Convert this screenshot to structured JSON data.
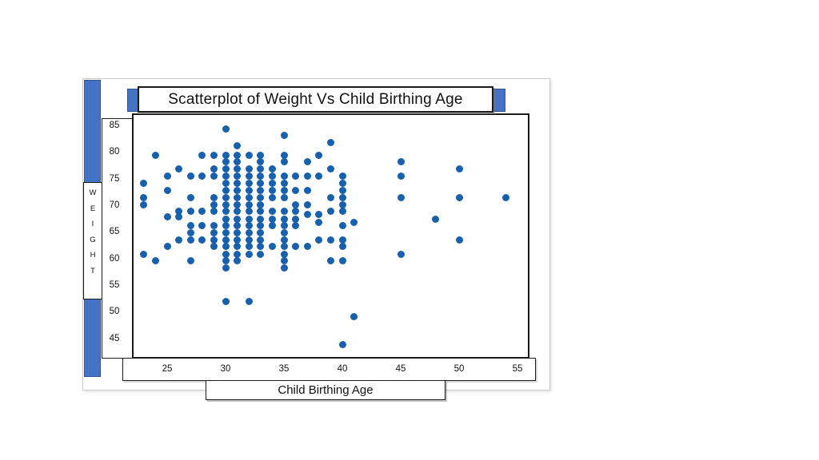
{
  "window": {
    "kind": "embedded spreadsheet chart object with selection handles",
    "selection_bar_color": "#4472c4",
    "selection_bar_border": "#2f5597"
  },
  "chart_data": {
    "type": "scatter",
    "title": "Scatterplot of Weight Vs Child Birthing Age",
    "xlabel": "Child Birthing Age",
    "ylabel": "WEIGHT",
    "x_ticks": [
      25,
      30,
      35,
      40,
      45,
      50,
      55
    ],
    "y_ticks": [
      85,
      80,
      75,
      70,
      65,
      60,
      55,
      50,
      45
    ],
    "xlim": [
      22,
      56.5
    ],
    "ylim": [
      42.5,
      87.5
    ],
    "grid": false,
    "legend": "none",
    "point_color": "#1760ae",
    "points": [
      [
        23,
        74.3
      ],
      [
        23,
        71.6
      ],
      [
        23,
        70.3
      ],
      [
        23,
        61
      ],
      [
        24,
        79.5
      ],
      [
        24,
        59.7
      ],
      [
        25,
        75.7
      ],
      [
        25,
        73
      ],
      [
        25,
        68
      ],
      [
        25,
        62.4
      ],
      [
        26,
        77
      ],
      [
        26,
        69
      ],
      [
        26,
        68
      ],
      [
        26,
        63.7
      ],
      [
        27,
        75.7
      ],
      [
        27,
        71.6
      ],
      [
        27,
        69
      ],
      [
        27,
        66.3
      ],
      [
        27,
        65
      ],
      [
        27,
        63.7
      ],
      [
        27,
        59.7
      ],
      [
        28,
        79.5
      ],
      [
        28,
        75.7
      ],
      [
        28,
        69
      ],
      [
        28,
        66.3
      ],
      [
        28,
        63.7
      ],
      [
        29,
        79.5
      ],
      [
        29,
        77
      ],
      [
        29,
        75.7
      ],
      [
        29,
        71.6
      ],
      [
        29,
        70.3
      ],
      [
        29,
        69
      ],
      [
        29,
        66.3
      ],
      [
        29,
        65
      ],
      [
        29,
        63.7
      ],
      [
        29,
        62.4
      ],
      [
        30,
        84.5
      ],
      [
        30,
        79.5
      ],
      [
        30,
        78.3
      ],
      [
        30,
        77
      ],
      [
        30,
        75.7
      ],
      [
        30,
        74.3
      ],
      [
        30,
        73
      ],
      [
        30,
        71.6
      ],
      [
        30,
        70.3
      ],
      [
        30,
        69
      ],
      [
        30,
        67.6
      ],
      [
        30,
        66.3
      ],
      [
        30,
        65
      ],
      [
        30,
        63.7
      ],
      [
        30,
        62.4
      ],
      [
        30,
        61
      ],
      [
        30,
        59.7
      ],
      [
        30,
        58.4
      ],
      [
        30,
        52.1
      ],
      [
        31,
        81.3
      ],
      [
        31,
        79.5
      ],
      [
        31,
        78.3
      ],
      [
        31,
        77
      ],
      [
        31,
        75.7
      ],
      [
        31,
        74.3
      ],
      [
        31,
        73
      ],
      [
        31,
        71.6
      ],
      [
        31,
        70.3
      ],
      [
        31,
        69
      ],
      [
        31,
        67.6
      ],
      [
        31,
        66.3
      ],
      [
        31,
        65
      ],
      [
        31,
        63.7
      ],
      [
        31,
        62.4
      ],
      [
        31,
        61
      ],
      [
        31,
        59.7
      ],
      [
        32,
        79.5
      ],
      [
        32,
        77
      ],
      [
        32,
        75.7
      ],
      [
        32,
        74.3
      ],
      [
        32,
        73
      ],
      [
        32,
        71.6
      ],
      [
        32,
        70.3
      ],
      [
        32,
        69
      ],
      [
        32,
        67.6
      ],
      [
        32,
        66.3
      ],
      [
        32,
        65
      ],
      [
        32,
        63.7
      ],
      [
        32,
        62.4
      ],
      [
        32,
        61
      ],
      [
        32,
        52.1
      ],
      [
        33,
        79.5
      ],
      [
        33,
        78.3
      ],
      [
        33,
        77
      ],
      [
        33,
        75.7
      ],
      [
        33,
        74.3
      ],
      [
        33,
        73
      ],
      [
        33,
        71.6
      ],
      [
        33,
        70.3
      ],
      [
        33,
        69
      ],
      [
        33,
        67.6
      ],
      [
        33,
        66.3
      ],
      [
        33,
        65
      ],
      [
        33,
        63.7
      ],
      [
        33,
        62.4
      ],
      [
        33,
        61
      ],
      [
        34,
        77
      ],
      [
        34,
        75.7
      ],
      [
        34,
        74.3
      ],
      [
        34,
        73
      ],
      [
        34,
        71.6
      ],
      [
        34,
        69
      ],
      [
        34,
        67.6
      ],
      [
        34,
        66.3
      ],
      [
        34,
        62.4
      ],
      [
        35,
        83.3
      ],
      [
        35,
        79.5
      ],
      [
        35,
        78.3
      ],
      [
        35,
        75.7
      ],
      [
        35,
        74.3
      ],
      [
        35,
        73
      ],
      [
        35,
        71.6
      ],
      [
        35,
        69
      ],
      [
        35,
        67.6
      ],
      [
        35,
        66.3
      ],
      [
        35,
        65
      ],
      [
        35,
        63.7
      ],
      [
        35,
        62.4
      ],
      [
        35,
        61
      ],
      [
        35,
        59.7
      ],
      [
        35,
        58.4
      ],
      [
        36,
        75.7
      ],
      [
        36,
        73
      ],
      [
        36,
        70.3
      ],
      [
        36,
        69
      ],
      [
        36,
        67.6
      ],
      [
        36,
        66.3
      ],
      [
        36,
        62.4
      ],
      [
        37,
        78.3
      ],
      [
        37,
        75.7
      ],
      [
        37,
        73
      ],
      [
        37,
        70.3
      ],
      [
        37,
        68.4
      ],
      [
        37,
        62.4
      ],
      [
        38,
        79.5
      ],
      [
        38,
        75.7
      ],
      [
        38,
        68.4
      ],
      [
        38,
        67
      ],
      [
        38,
        63.7
      ],
      [
        39,
        82
      ],
      [
        39,
        77
      ],
      [
        39,
        71.6
      ],
      [
        39,
        69
      ],
      [
        39,
        63.7
      ],
      [
        39,
        59.7
      ],
      [
        40,
        75.7
      ],
      [
        40,
        74.3
      ],
      [
        40,
        73
      ],
      [
        40,
        71.6
      ],
      [
        40,
        70.3
      ],
      [
        40,
        69
      ],
      [
        40,
        66.3
      ],
      [
        40,
        63.7
      ],
      [
        40,
        62.4
      ],
      [
        40,
        59.7
      ],
      [
        40,
        44
      ],
      [
        41,
        67
      ],
      [
        41,
        49.3
      ],
      [
        45,
        78.3
      ],
      [
        45,
        75.7
      ],
      [
        45,
        71.6
      ],
      [
        45,
        61
      ],
      [
        48,
        67.6
      ],
      [
        50,
        77
      ],
      [
        50,
        71.6
      ],
      [
        50,
        63.7
      ],
      [
        54,
        71.6
      ]
    ]
  }
}
